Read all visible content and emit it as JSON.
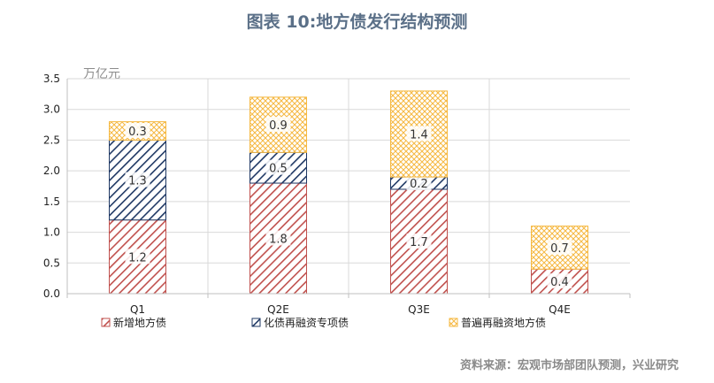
{
  "title": "图表 10:地方债发行结构预测",
  "source": "资料来源：宏观市场部团队预测，兴业研究",
  "colors": {
    "s1": "#c0504d",
    "s2": "#1f3864",
    "s3": "#f5b841",
    "axis": "#bfbfbf",
    "grid": "#d9d9d9"
  },
  "chart_data": {
    "type": "bar",
    "stacked": true,
    "title": "图表 10:地方债发行结构预测",
    "ylabel": "万亿元",
    "xlabel": "",
    "ylim": [
      0,
      3.5
    ],
    "ytick_step": 0.5,
    "yticks": [
      "0.0",
      "0.5",
      "1.0",
      "1.5",
      "2.0",
      "2.5",
      "3.0",
      "3.5"
    ],
    "grid": true,
    "legend_position": "bottom",
    "categories": [
      "Q1",
      "Q2E",
      "Q3E",
      "Q4E"
    ],
    "series": [
      {
        "name": "新增地方债",
        "values": [
          1.2,
          1.8,
          1.7,
          0.4
        ],
        "labels": [
          "1.2",
          "1.8",
          "1.7",
          "0.4"
        ],
        "pattern": "diag-red"
      },
      {
        "name": "化债再融资专项债",
        "values": [
          1.3,
          0.5,
          0.2,
          0
        ],
        "labels": [
          "1.3",
          "0.5",
          "0.2",
          ""
        ],
        "pattern": "diag-navy"
      },
      {
        "name": "普遍再融资地方债",
        "values": [
          0.3,
          0.9,
          1.4,
          0.7
        ],
        "labels": [
          "0.3",
          "0.9",
          "1.4",
          "0.7"
        ],
        "pattern": "cross-orange"
      }
    ]
  }
}
